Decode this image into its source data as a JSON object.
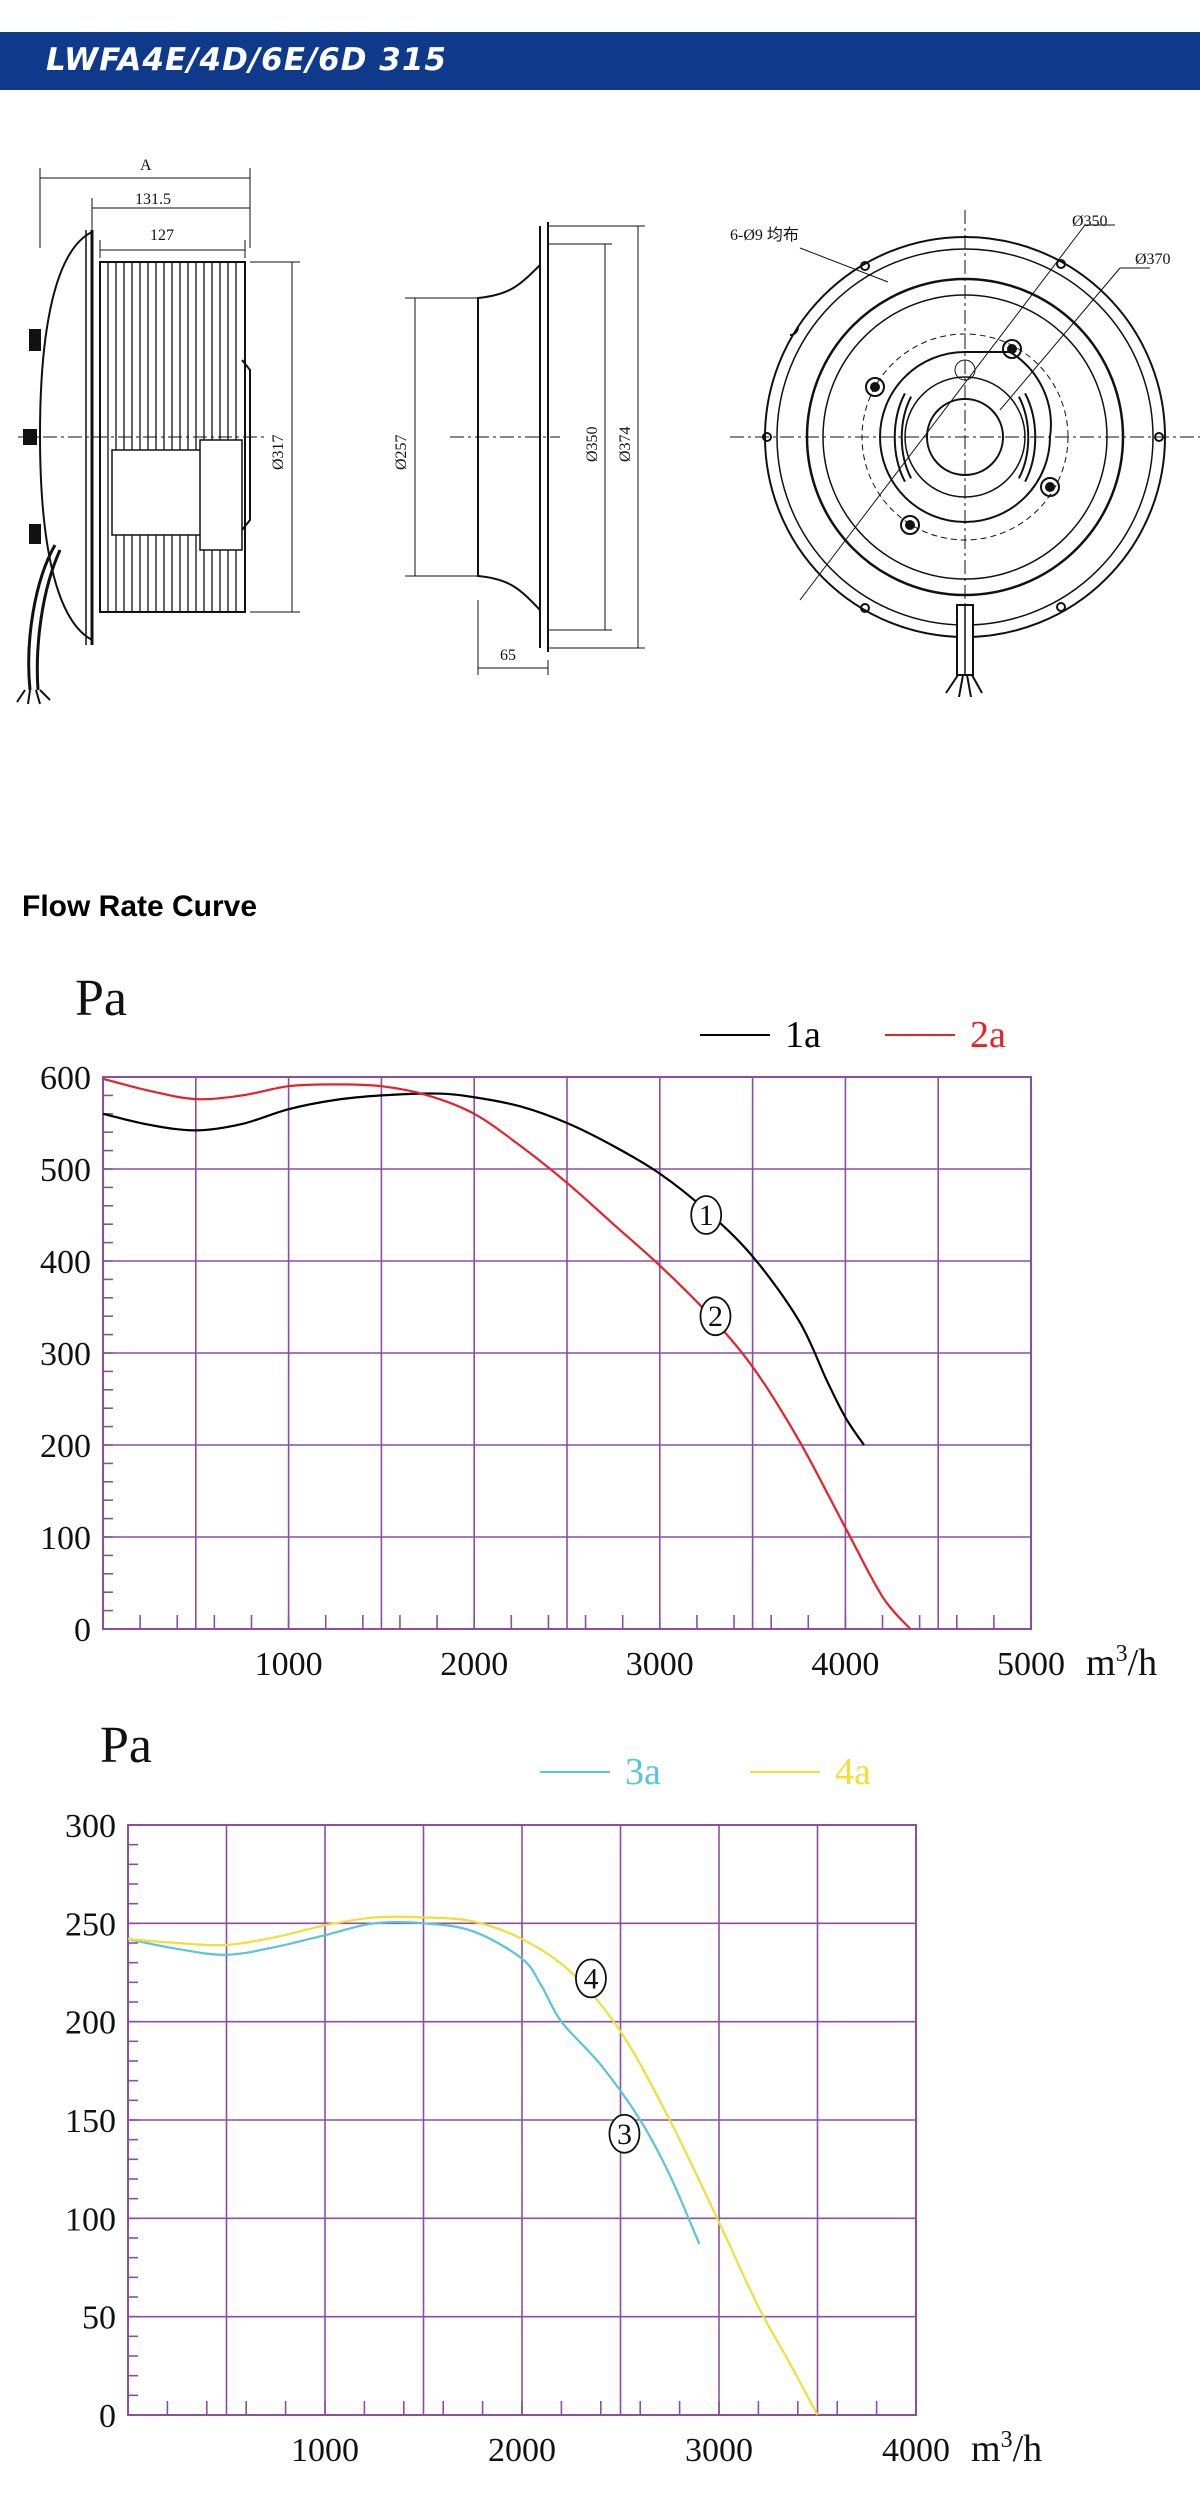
{
  "header": {
    "title": "LWFA4E/4D/6E/6D 315"
  },
  "drawings": {
    "side_view": {
      "dim_a": "A",
      "dim_width_1": "131.5",
      "dim_width_2": "127",
      "dim_diameter": "Ø317"
    },
    "mid_view": {
      "dim_inner": "Ø257",
      "dim_d350": "Ø350",
      "dim_d374": "Ø374",
      "dim_depth": "65"
    },
    "front_view": {
      "holes_note": "6-Ø9 均布",
      "dim_d350": "Ø350",
      "dim_d370": "Ø370"
    }
  },
  "section_title": "Flow Rate Curve",
  "chart_data": [
    {
      "type": "line",
      "ylabel": "Pa",
      "xlabel": "m³/h",
      "xunit_base": "m",
      "xunit_sup": "3",
      "xunit_tail": "/h",
      "xlim": [
        0,
        5000
      ],
      "ylim": [
        0,
        600
      ],
      "xticks": [
        1000,
        2000,
        3000,
        4000,
        5000
      ],
      "yticks": [
        0,
        100,
        200,
        300,
        400,
        500,
        600
      ],
      "grid": true,
      "legend_position": "top-right",
      "series": [
        {
          "name": "1a",
          "color": "#000000",
          "marker": "1",
          "marker_at": [
            3250,
            450
          ],
          "points": [
            [
              0,
              560
            ],
            [
              250,
              548
            ],
            [
              500,
              542
            ],
            [
              750,
              549
            ],
            [
              1000,
              565
            ],
            [
              1250,
              575
            ],
            [
              1500,
              580
            ],
            [
              1800,
              582
            ],
            [
              2000,
              578
            ],
            [
              2250,
              568
            ],
            [
              2500,
              550
            ],
            [
              2750,
              525
            ],
            [
              3000,
              495
            ],
            [
              3250,
              455
            ],
            [
              3500,
              405
            ],
            [
              3750,
              335
            ],
            [
              3900,
              270
            ],
            [
              4000,
              230
            ],
            [
              4100,
              200
            ]
          ]
        },
        {
          "name": "2a",
          "color": "#e8202a",
          "marker": "2",
          "marker_at": [
            3300,
            340
          ],
          "points": [
            [
              0,
              598
            ],
            [
              250,
              585
            ],
            [
              500,
              576
            ],
            [
              750,
              580
            ],
            [
              1000,
              590
            ],
            [
              1250,
              592
            ],
            [
              1500,
              590
            ],
            [
              1750,
              580
            ],
            [
              2000,
              560
            ],
            [
              2250,
              525
            ],
            [
              2500,
              485
            ],
            [
              2750,
              440
            ],
            [
              3000,
              395
            ],
            [
              3250,
              345
            ],
            [
              3500,
              285
            ],
            [
              3750,
              205
            ],
            [
              4000,
              110
            ],
            [
              4200,
              35
            ],
            [
              4350,
              0
            ]
          ]
        }
      ]
    },
    {
      "type": "line",
      "ylabel": "Pa",
      "xlabel": "m³/h",
      "xunit_base": "m",
      "xunit_sup": "3",
      "xunit_tail": "/h",
      "xlim": [
        0,
        4000
      ],
      "ylim": [
        0,
        300
      ],
      "xticks": [
        1000,
        2000,
        3000,
        4000
      ],
      "yticks": [
        0,
        50,
        100,
        150,
        200,
        250,
        300
      ],
      "grid": true,
      "legend_position": "top-right",
      "series": [
        {
          "name": "3a",
          "color": "#5bc4d8",
          "marker": "3",
          "marker_at": [
            2520,
            143
          ],
          "points": [
            [
              0,
              242
            ],
            [
              250,
              237
            ],
            [
              500,
              234
            ],
            [
              750,
              238
            ],
            [
              1000,
              244
            ],
            [
              1250,
              250
            ],
            [
              1500,
              250
            ],
            [
              1750,
              246
            ],
            [
              2000,
              232
            ],
            [
              2100,
              218
            ],
            [
              2200,
              200
            ],
            [
              2400,
              178
            ],
            [
              2600,
              150
            ],
            [
              2750,
              122
            ],
            [
              2900,
              87
            ]
          ]
        },
        {
          "name": "4a",
          "color": "#f0e036",
          "marker": "4",
          "marker_at": [
            2350,
            222
          ],
          "points": [
            [
              0,
              242
            ],
            [
              250,
              240
            ],
            [
              500,
              239
            ],
            [
              750,
              243
            ],
            [
              1000,
              249
            ],
            [
              1250,
              253
            ],
            [
              1500,
              253
            ],
            [
              1750,
              251
            ],
            [
              2000,
              242
            ],
            [
              2250,
              225
            ],
            [
              2500,
              195
            ],
            [
              2750,
              150
            ],
            [
              3000,
              98
            ],
            [
              3200,
              55
            ],
            [
              3350,
              28
            ],
            [
              3500,
              0
            ]
          ]
        }
      ]
    }
  ]
}
